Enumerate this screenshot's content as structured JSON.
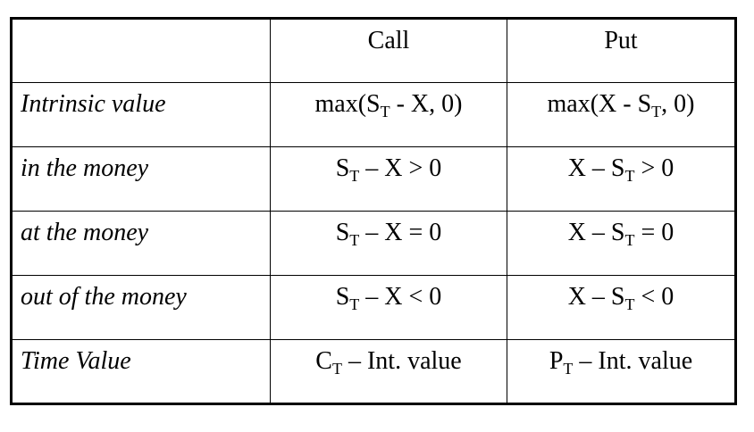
{
  "table": {
    "header": {
      "corner": "",
      "call": "Call",
      "put": "Put"
    },
    "rows": [
      {
        "label": "Intrinsic value",
        "call": {
          "pre": "max(S",
          "sub": "T",
          "post": " - X, 0)"
        },
        "put": {
          "pre": "max(X - S",
          "sub": "T",
          "post": ", 0)"
        }
      },
      {
        "label": "in the money",
        "call": {
          "pre": "S",
          "sub": "T",
          "post": " – X > 0"
        },
        "put": {
          "pre": "X – S",
          "sub": "T",
          "post": " > 0"
        }
      },
      {
        "label": "at the money",
        "call": {
          "pre": "S",
          "sub": "T",
          "post": " – X = 0"
        },
        "put": {
          "pre": "X – S",
          "sub": "T",
          "post": " = 0"
        }
      },
      {
        "label": "out of the money",
        "call": {
          "pre": "S",
          "sub": "T",
          "post": " – X < 0"
        },
        "put": {
          "pre": "X – S",
          "sub": "T",
          "post": " < 0"
        }
      },
      {
        "label": "Time Value",
        "call": {
          "pre": "C",
          "sub": "T",
          "post": " – Int. value"
        },
        "put": {
          "pre": "P",
          "sub": "T",
          "post": " – Int. value"
        }
      }
    ]
  }
}
